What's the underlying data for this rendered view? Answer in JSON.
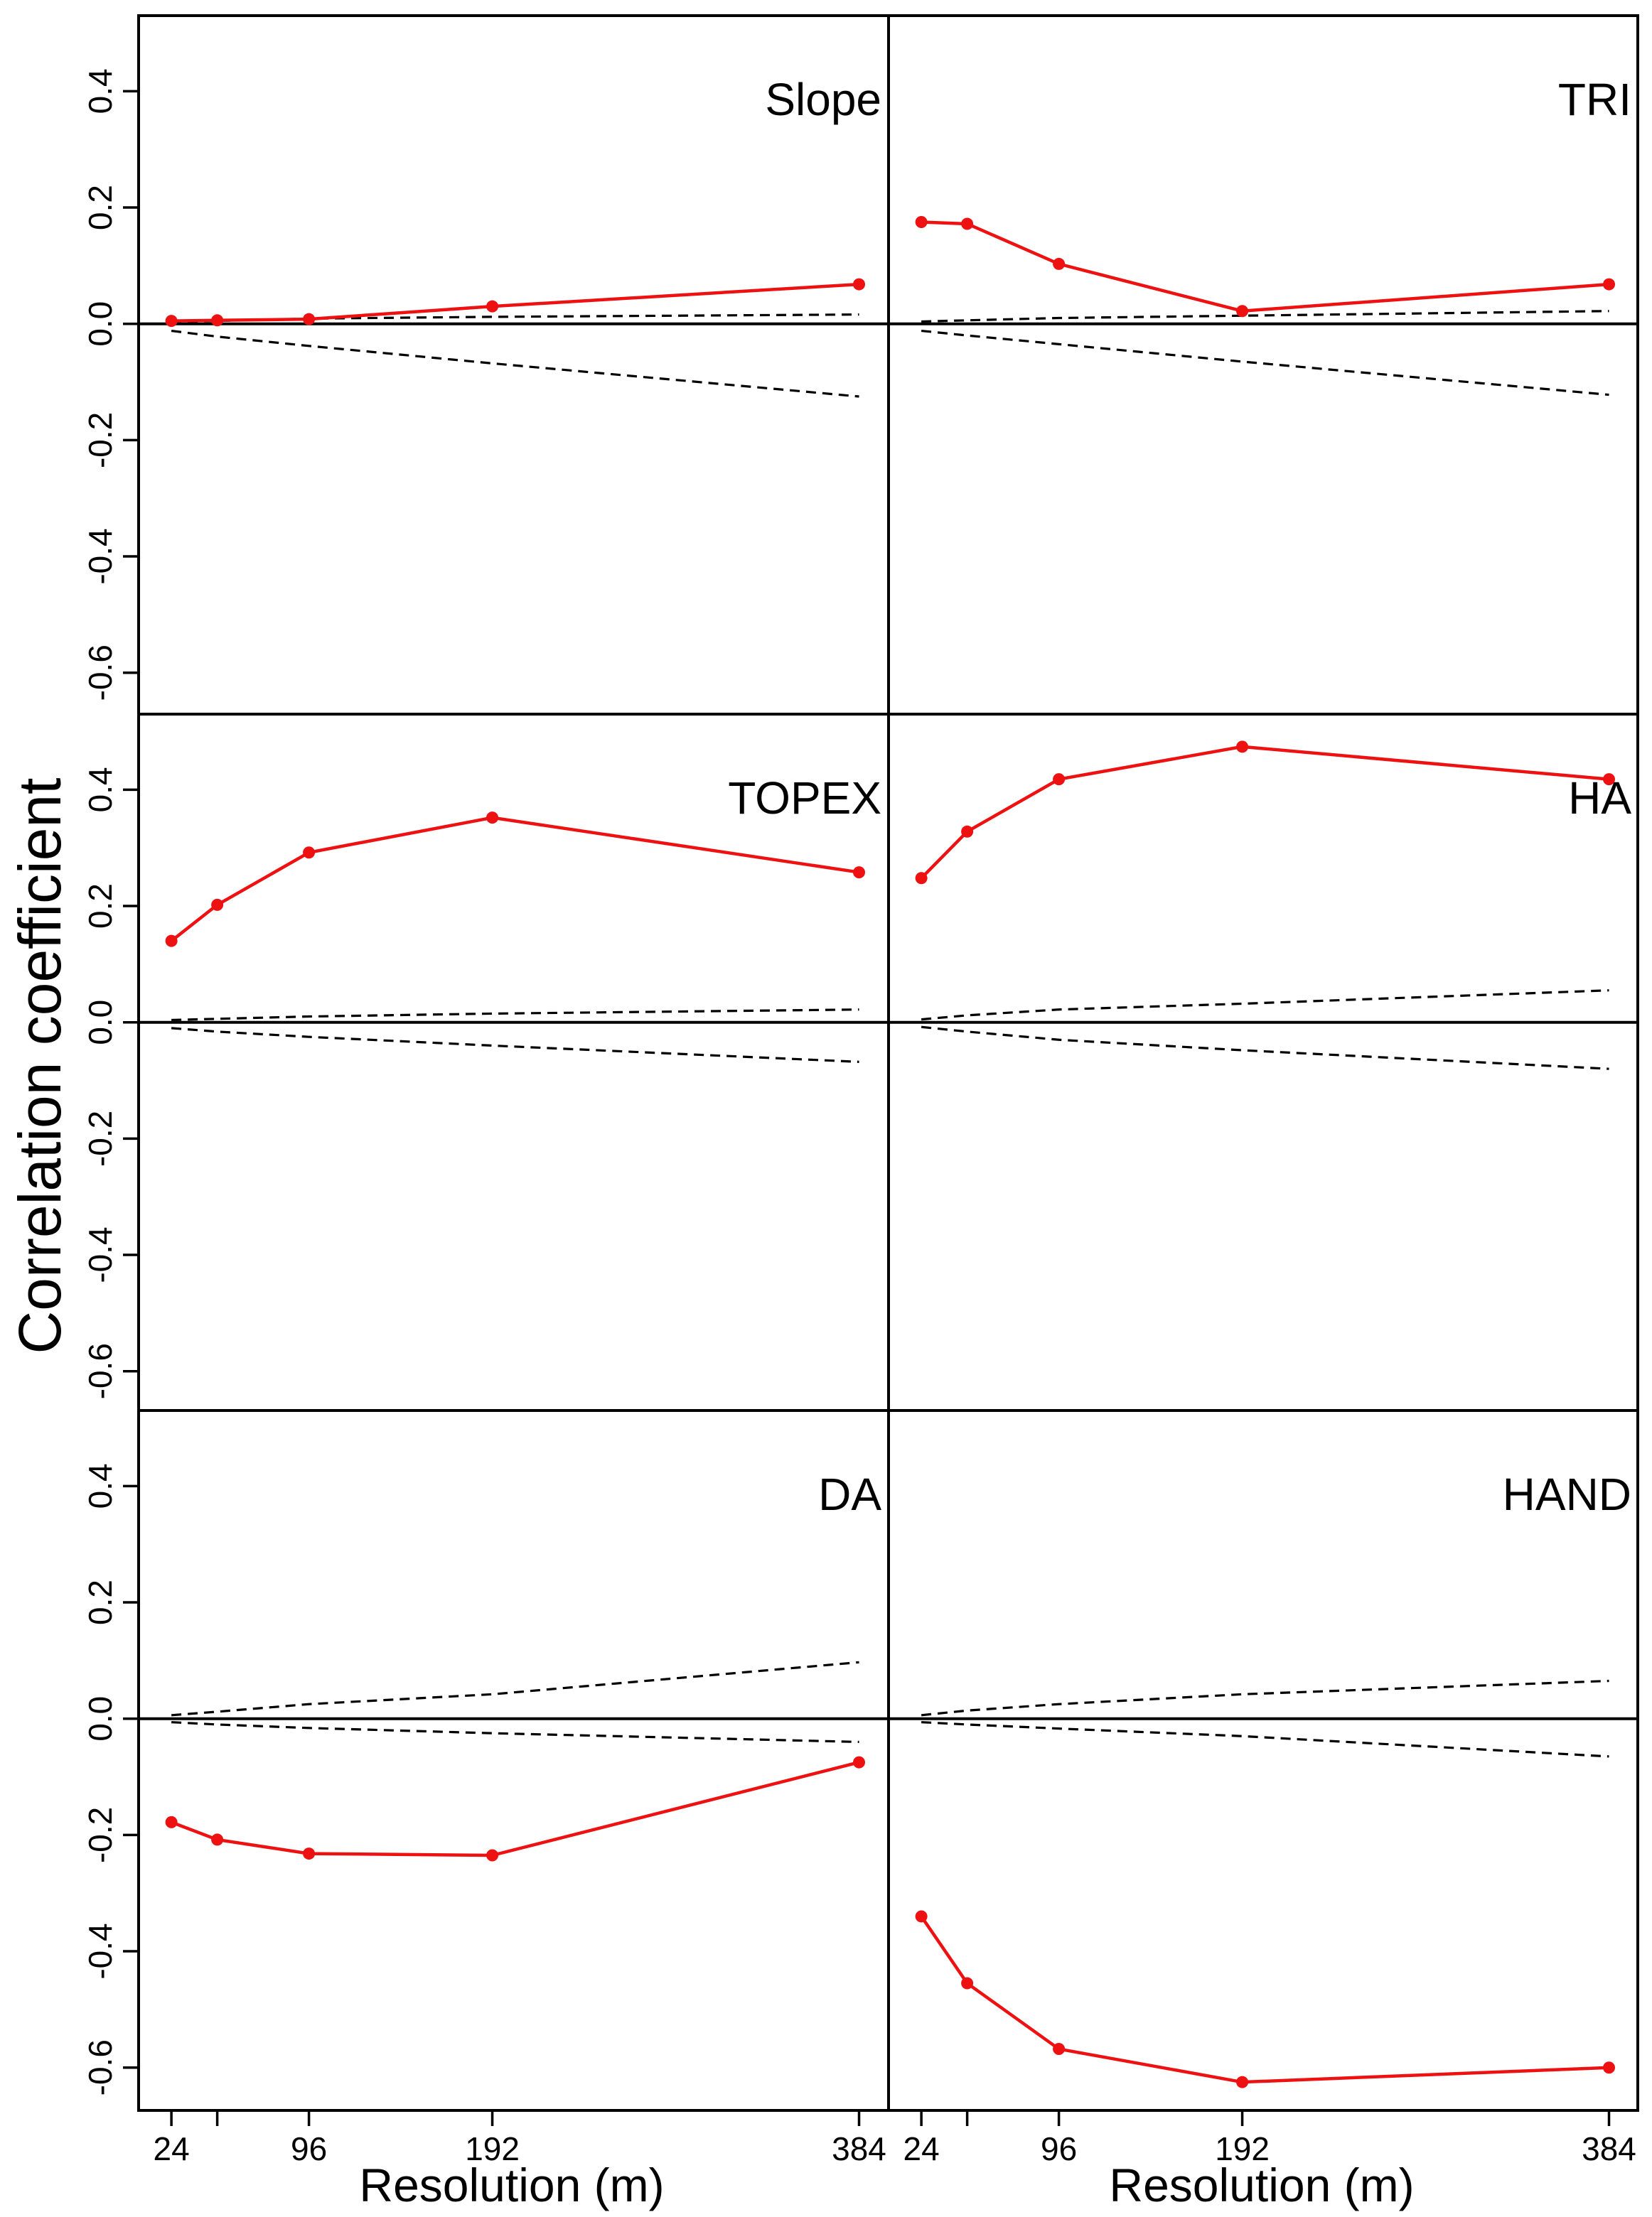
{
  "chart_data": {
    "type": "line",
    "ylabel": "Correlation coefficient",
    "xlabel": "Resolution (m)",
    "x": [
      24,
      48,
      96,
      192,
      384
    ],
    "x_tick_labels": [
      "24",
      "96",
      "192",
      "384"
    ],
    "x_ticks": [
      24,
      48,
      96,
      192,
      384
    ],
    "ylim": [
      -0.67,
      0.53
    ],
    "y_ticks": [
      "-0.6",
      "-0.4",
      "-0.2",
      "0.0",
      "0.2",
      "0.4"
    ],
    "y_tick_values": [
      -0.6,
      -0.4,
      -0.2,
      0.0,
      0.2,
      0.4
    ],
    "xlim": [
      18,
      392
    ],
    "colors": {
      "data": "#ee1111",
      "envelope": "#000000"
    },
    "panels": [
      {
        "title": "Slope",
        "values": [
          0.005,
          0.006,
          0.008,
          0.03,
          0.068
        ],
        "upper": [
          0.003,
          0.005,
          0.009,
          0.012,
          0.016
        ],
        "lower": [
          -0.012,
          -0.022,
          -0.038,
          -0.068,
          -0.125
        ]
      },
      {
        "title": "TRI",
        "values": [
          0.175,
          0.172,
          0.103,
          0.022,
          0.068
        ],
        "upper": [
          0.004,
          0.006,
          0.01,
          0.014,
          0.022
        ],
        "lower": [
          -0.012,
          -0.02,
          -0.035,
          -0.065,
          -0.122
        ]
      },
      {
        "title": "TOPEX",
        "values": [
          0.14,
          0.202,
          0.292,
          0.352,
          0.258
        ],
        "upper": [
          0.004,
          0.006,
          0.01,
          0.015,
          0.022
        ],
        "lower": [
          -0.01,
          -0.016,
          -0.025,
          -0.04,
          -0.068
        ]
      },
      {
        "title": "HA",
        "values": [
          0.248,
          0.328,
          0.418,
          0.474,
          0.418
        ],
        "upper": [
          0.005,
          0.012,
          0.022,
          0.032,
          0.055
        ],
        "lower": [
          -0.008,
          -0.016,
          -0.03,
          -0.048,
          -0.08
        ]
      },
      {
        "title": "DA",
        "values": [
          -0.178,
          -0.208,
          -0.232,
          -0.235,
          -0.075
        ],
        "upper": [
          0.006,
          0.012,
          0.025,
          0.042,
          0.097
        ],
        "lower": [
          -0.006,
          -0.01,
          -0.016,
          -0.025,
          -0.04
        ]
      },
      {
        "title": "HAND",
        "values": [
          -0.34,
          -0.455,
          -0.568,
          -0.625,
          -0.6
        ],
        "upper": [
          0.006,
          0.014,
          0.025,
          0.042,
          0.065
        ],
        "lower": [
          -0.006,
          -0.01,
          -0.017,
          -0.03,
          -0.065
        ]
      }
    ]
  }
}
